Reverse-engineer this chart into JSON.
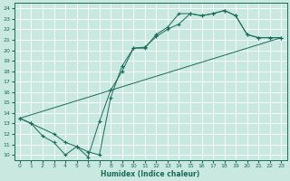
{
  "xlabel": "Humidex (Indice chaleur)",
  "background_color": "#c8e8e0",
  "grid_color": "#b8d8d0",
  "line_color": "#1a6b5a",
  "xlim": [
    -0.5,
    23.5
  ],
  "ylim": [
    9.5,
    24.5
  ],
  "xticks": [
    0,
    1,
    2,
    3,
    4,
    5,
    6,
    7,
    8,
    9,
    10,
    11,
    12,
    13,
    14,
    15,
    16,
    17,
    18,
    19,
    20,
    21,
    22,
    23
  ],
  "yticks": [
    10,
    11,
    12,
    13,
    14,
    15,
    16,
    17,
    18,
    19,
    20,
    21,
    22,
    23,
    24
  ],
  "line1_x": [
    0,
    1,
    2,
    3,
    4,
    5,
    6,
    7,
    8,
    9,
    10,
    11,
    12,
    13,
    14,
    15,
    16,
    17,
    18,
    19,
    20,
    21,
    22,
    23
  ],
  "line1_y": [
    13.5,
    13.0,
    11.8,
    11.2,
    10.0,
    10.8,
    9.8,
    13.2,
    16.2,
    18.0,
    20.2,
    20.2,
    21.5,
    22.2,
    23.5,
    23.5,
    23.3,
    23.5,
    23.8,
    23.3,
    21.5,
    21.2,
    21.2,
    21.2
  ],
  "line2_x": [
    0,
    1,
    3,
    4,
    5,
    6,
    7,
    8,
    9,
    10,
    11,
    12,
    13,
    14,
    15,
    16,
    17,
    18,
    19,
    20,
    21,
    22,
    23
  ],
  "line2_y": [
    13.5,
    13.0,
    12.0,
    11.2,
    10.8,
    10.3,
    10.0,
    15.5,
    18.5,
    20.2,
    20.3,
    21.3,
    22.0,
    22.5,
    23.5,
    23.3,
    23.5,
    23.8,
    23.3,
    21.5,
    21.2,
    21.2,
    21.2
  ],
  "line3_x": [
    0,
    23
  ],
  "line3_y": [
    13.5,
    21.2
  ],
  "marker_size": 2.2,
  "linewidth": 0.7
}
